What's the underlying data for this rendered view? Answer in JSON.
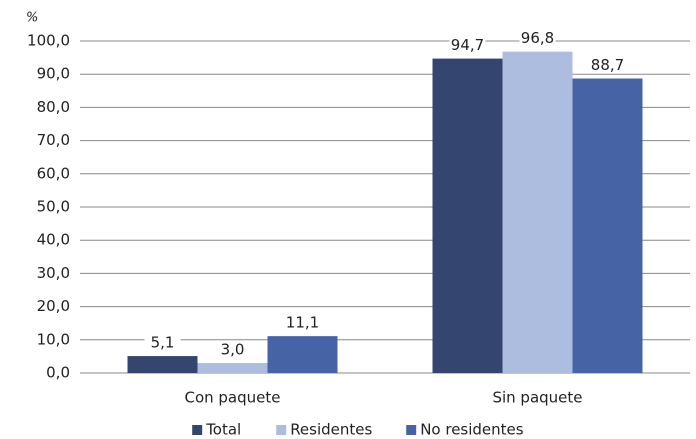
{
  "chart_data": {
    "type": "bar",
    "y_axis_label": "%",
    "categories": [
      "Con paquete",
      "Sin paquete"
    ],
    "series": [
      {
        "name": "Total",
        "color": "#34466f",
        "values": [
          5.1,
          94.7
        ],
        "value_labels": [
          "5,1",
          "94,7"
        ]
      },
      {
        "name": "Residentes",
        "color": "#adbde0",
        "values": [
          3.0,
          96.8
        ],
        "value_labels": [
          "3,0",
          "96,8"
        ]
      },
      {
        "name": "No residentes",
        "color": "#4563a5",
        "values": [
          11.1,
          88.7
        ],
        "value_labels": [
          "11,1",
          "88,7"
        ]
      }
    ],
    "ylim": [
      0,
      100
    ],
    "yticks": [
      {
        "value": 0,
        "label": "0,0"
      },
      {
        "value": 10,
        "label": "10,0"
      },
      {
        "value": 20,
        "label": "20,0"
      },
      {
        "value": 30,
        "label": "30,0"
      },
      {
        "value": 40,
        "label": "40,0"
      },
      {
        "value": 50,
        "label": "50,0"
      },
      {
        "value": 60,
        "label": "60,0"
      },
      {
        "value": 70,
        "label": "70,0"
      },
      {
        "value": 80,
        "label": "80,0"
      },
      {
        "value": 90,
        "label": "90,0"
      },
      {
        "value": 100,
        "label": "100,0"
      }
    ],
    "grid": true,
    "legend": "bottom"
  }
}
